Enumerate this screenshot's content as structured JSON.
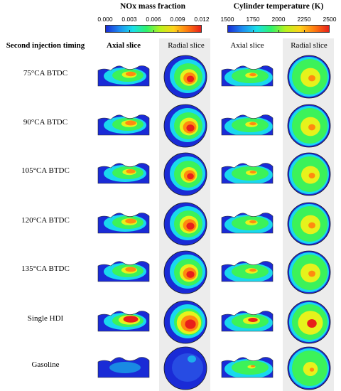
{
  "legend": {
    "nox": {
      "title": "NOx mass fraction",
      "ticks": [
        "0.000",
        "0.003",
        "0.006",
        "0.009",
        "0.012"
      ]
    },
    "temp": {
      "title": "Cylinder temperature (K)",
      "ticks": [
        "1500",
        "1750",
        "2000",
        "2250",
        "2500"
      ]
    }
  },
  "columns": {
    "row_header": "Second injection timing",
    "nox_axial": "Axial slice",
    "nox_radial": "Radial slice",
    "temp_axial": "Axial slice",
    "temp_radial": "Radial slice"
  },
  "rows": [
    {
      "label": "75°CA BTDC"
    },
    {
      "label": "90°CA BTDC"
    },
    {
      "label": "105°CA BTDC"
    },
    {
      "label": "120°CA BTDC"
    },
    {
      "label": "135°CA BTDC"
    },
    {
      "label": "Single HDI"
    },
    {
      "label": "Gasoline"
    }
  ],
  "colors": {
    "blue": "#1a2bd6",
    "cyan": "#19d8ee",
    "green": "#3cf25a",
    "yellow": "#e6f21c",
    "orange": "#ff8a10",
    "red": "#e8201a",
    "panel_bg": "#ececec"
  }
}
